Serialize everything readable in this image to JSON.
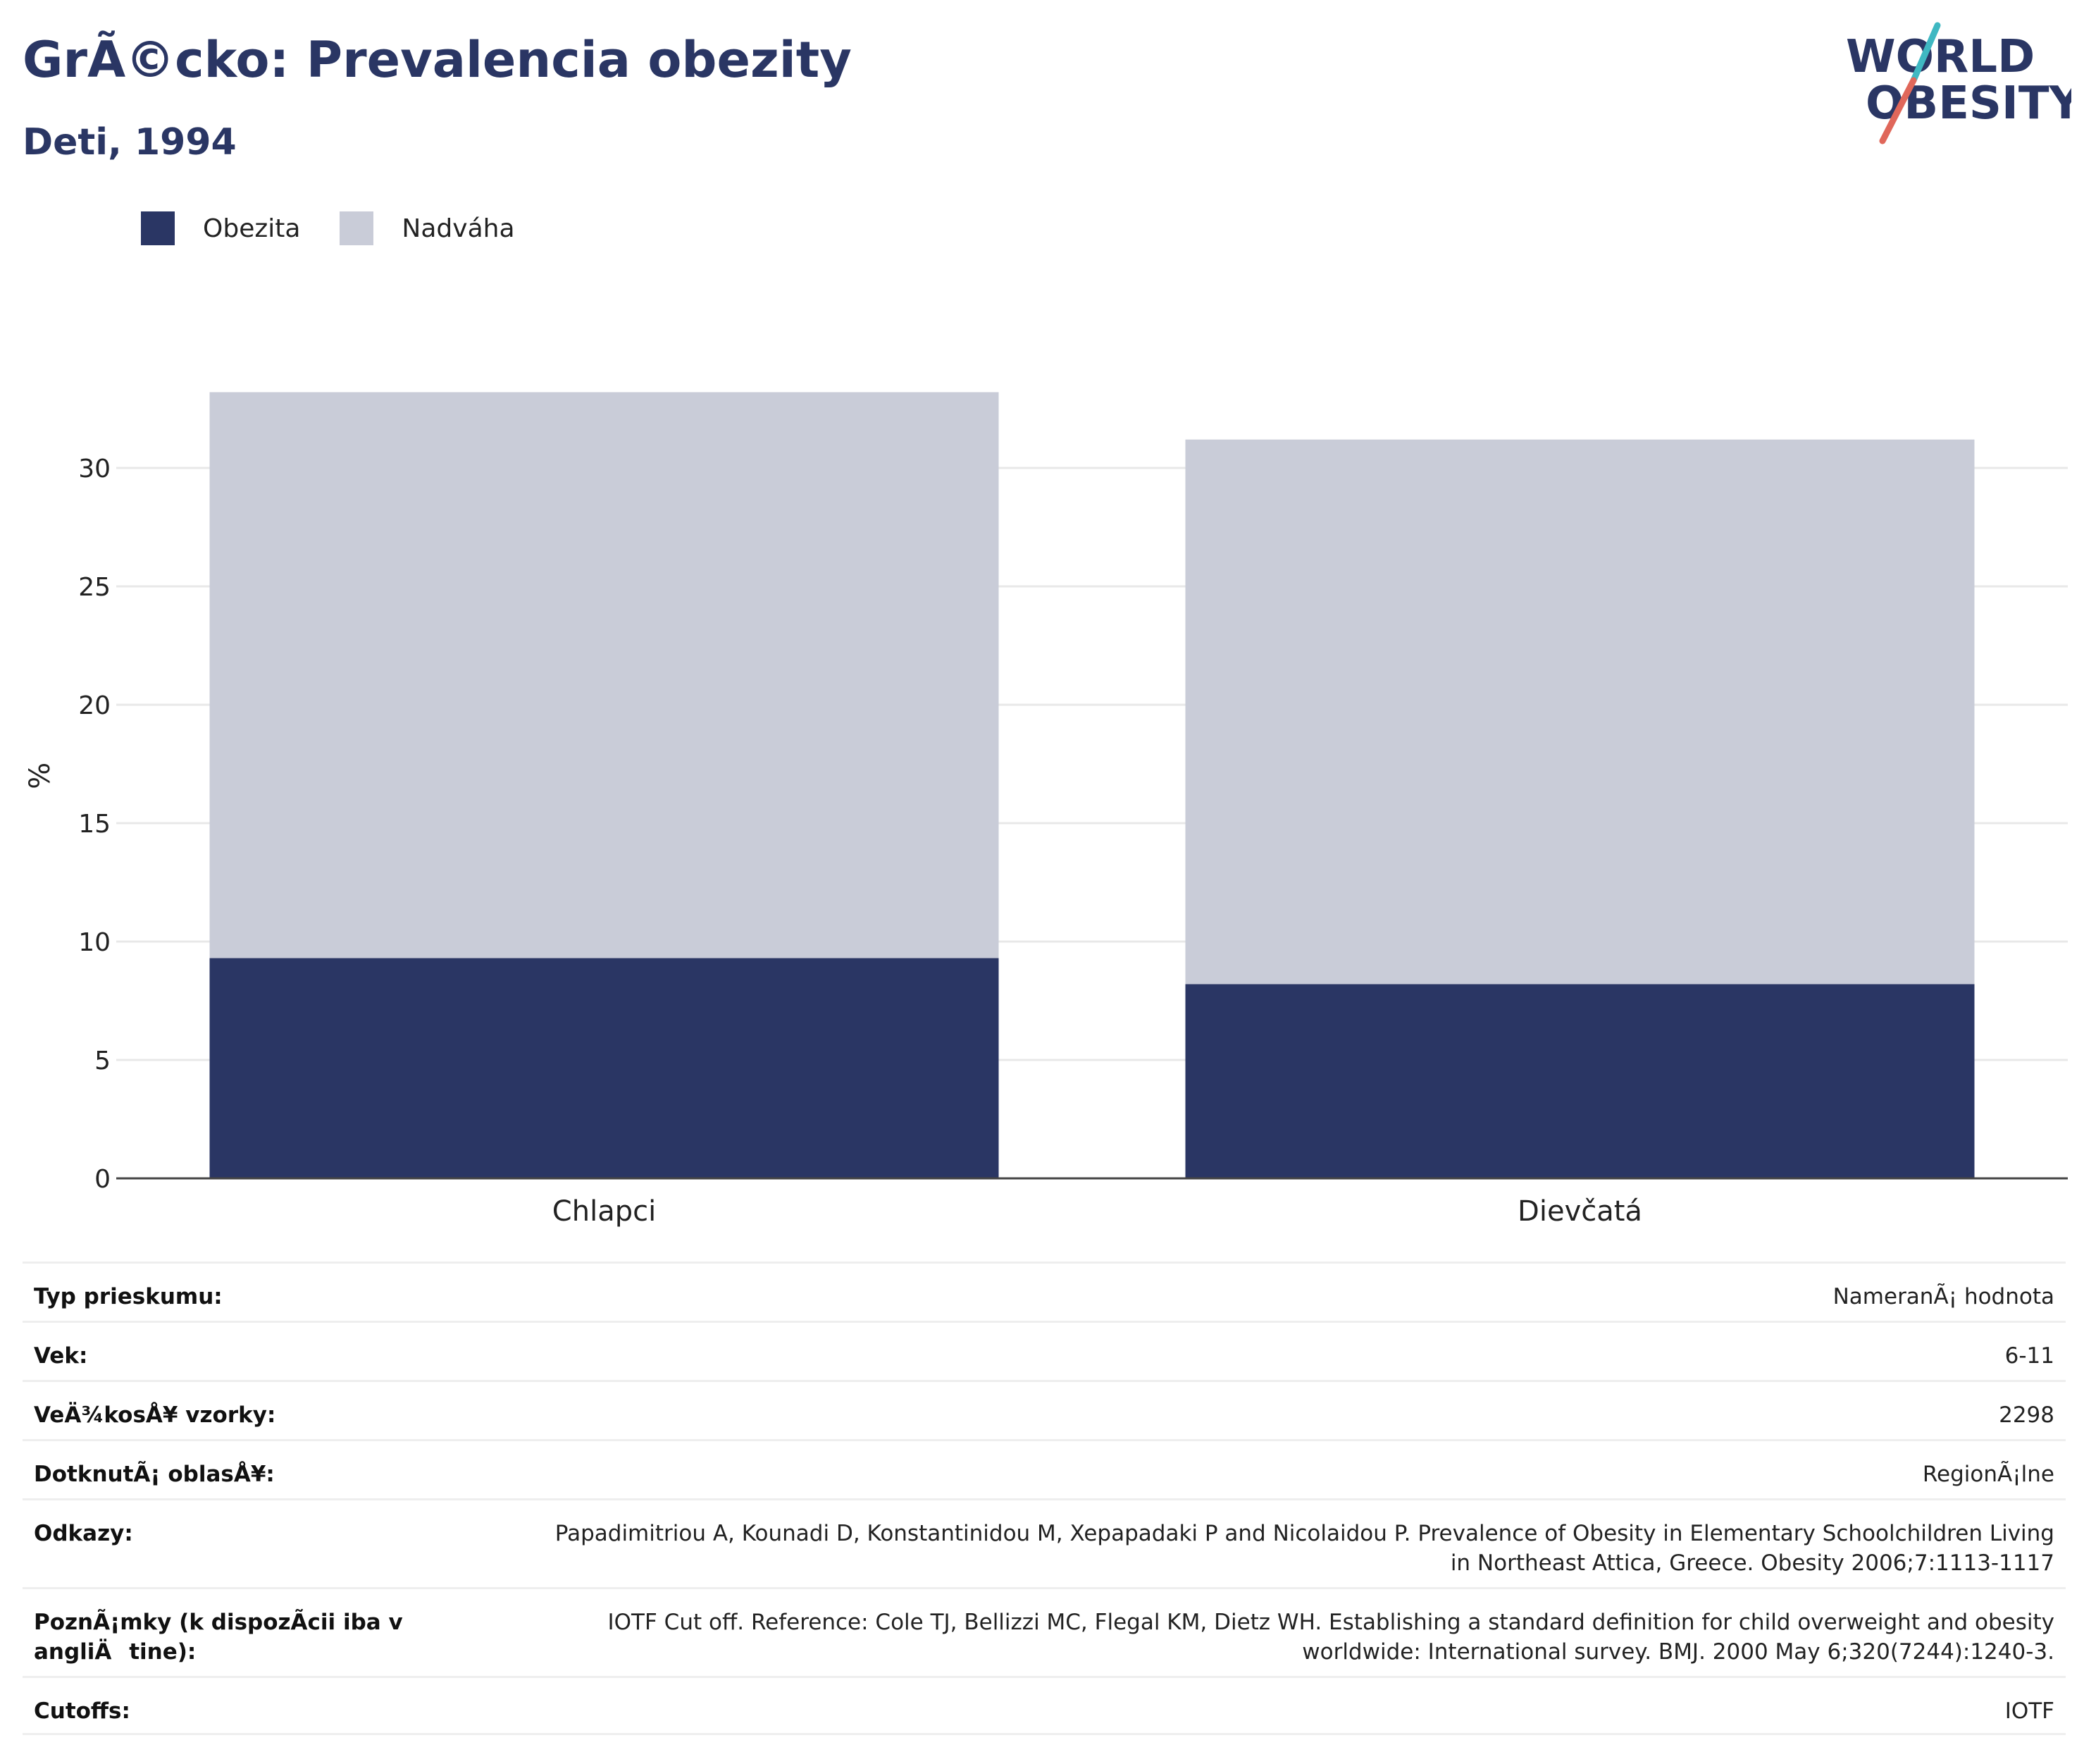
{
  "header": {
    "title": "GrÃ©cko: Prevalencia obezity",
    "subtitle": "Deti, 1994"
  },
  "logo": {
    "line1": "WORLD",
    "line2": "OBESITY",
    "colors": {
      "text": "#2a3664",
      "slash_teal": "#3fb8c2",
      "slash_red": "#e0675a"
    }
  },
  "colors": {
    "obesity": "#2a3664",
    "overweight": "#c9ccd8",
    "grid": "#e8e8e8",
    "axis": "#444444"
  },
  "chart_data": {
    "type": "bar",
    "stacked": true,
    "categories": [
      "Chlapci",
      "Dievčatá"
    ],
    "series": [
      {
        "name": "Obezita",
        "values": [
          9.3,
          8.2
        ],
        "color": "#2a3664"
      },
      {
        "name": "Nadváha",
        "values": [
          23.9,
          23.0
        ],
        "color": "#c9ccd8"
      }
    ],
    "ylabel": "%",
    "xlabel": "",
    "ylim": [
      0,
      35
    ],
    "yticks": [
      0,
      5,
      10,
      15,
      20,
      25,
      30
    ],
    "grid": true,
    "legend": "top-left"
  },
  "info": [
    {
      "label": "Typ prieskumu:",
      "value": "NameranÃ¡ hodnota"
    },
    {
      "label": "Vek:",
      "value": "6-11"
    },
    {
      "label": "VeÄ¾kosÅ¥ vzorky:",
      "value": "2298"
    },
    {
      "label": "DotknutÃ¡ oblasÅ¥:",
      "value": "RegionÃ¡lne"
    },
    {
      "label": "Odkazy:",
      "value": "Papadimitriou A, Kounadi D, Konstantinidou M, Xepapadaki P and Nicolaidou P. Prevalence of Obesity in Elementary Schoolchildren Living in Northeast Attica, Greece. Obesity 2006;7:1113-1117"
    },
    {
      "label": "PoznÃ¡mky (k dispozÃ­cii iba v angliÄtine):",
      "value": "IOTF Cut off. Reference: Cole TJ, Bellizzi MC, Flegal KM, Dietz WH. Establishing a standard definition for child overweight and obesity worldwide: International survey. BMJ. 2000 May 6;320(7244):1240-3."
    },
    {
      "label": "Cutoffs:",
      "value": "IOTF"
    }
  ]
}
